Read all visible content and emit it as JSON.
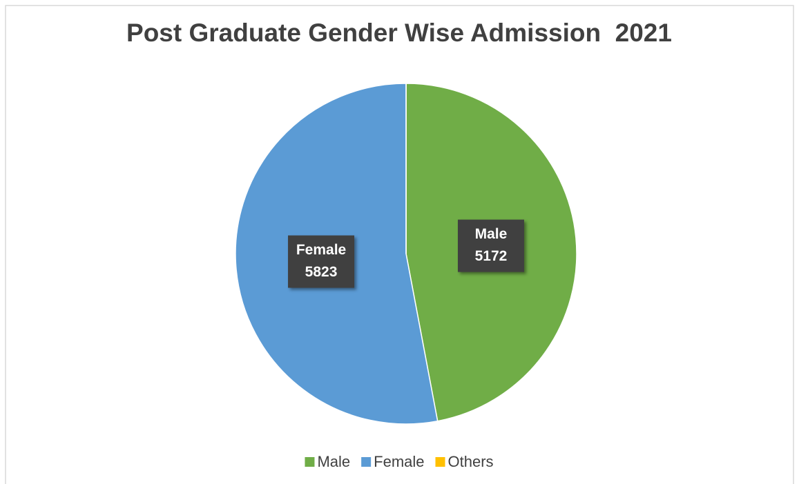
{
  "chart_data": {
    "type": "pie",
    "title": "Post Graduate Gender Wise Admission  2021",
    "categories": [
      "Male",
      "Female",
      "Others"
    ],
    "values": [
      5172,
      5823,
      0
    ],
    "colors": [
      "#70ad47",
      "#5b9bd5",
      "#ffc000"
    ],
    "legend": "bottom"
  }
}
